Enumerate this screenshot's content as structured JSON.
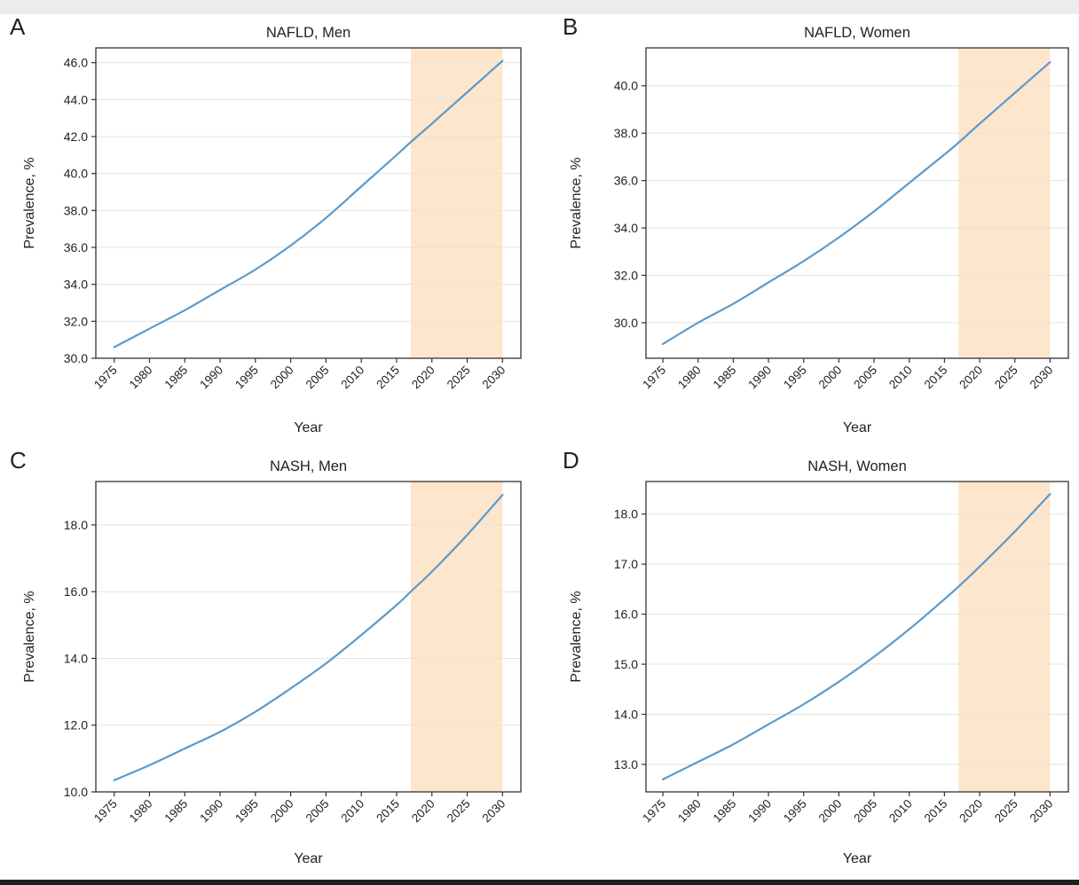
{
  "chart_data": [
    {
      "type": "line",
      "panel_letter": "A",
      "title": "NAFLD, Men",
      "xlabel": "Year",
      "ylabel": "Prevalence, %",
      "x_ticks": [
        "1975",
        "1980",
        "1985",
        "1990",
        "1995",
        "2000",
        "2005",
        "2010",
        "2015",
        "2020",
        "2025",
        "2030"
      ],
      "y_ticks": [
        "30.0",
        "32.0",
        "34.0",
        "36.0",
        "38.0",
        "40.0",
        "42.0",
        "44.0",
        "46.0"
      ],
      "xlim": [
        1972.4,
        2032.6
      ],
      "ylim": [
        30.0,
        46.8
      ],
      "grid": true,
      "projection_shading": {
        "from": 2017,
        "to": 2030,
        "color": "#fde6cc"
      },
      "line_color": "#5b9bcc",
      "series": [
        {
          "name": "NAFLD, Men",
          "x": [
            1975,
            1980,
            1985,
            1990,
            1995,
            2000,
            2005,
            2010,
            2015,
            2017,
            2020,
            2025,
            2030
          ],
          "values": [
            30.6,
            31.6,
            32.6,
            33.7,
            34.8,
            36.1,
            37.6,
            39.3,
            41.0,
            41.7,
            42.7,
            44.4,
            46.1
          ]
        }
      ]
    },
    {
      "type": "line",
      "panel_letter": "B",
      "title": "NAFLD, Women",
      "xlabel": "Year",
      "ylabel": "Prevalence, %",
      "x_ticks": [
        "1975",
        "1980",
        "1985",
        "1990",
        "1995",
        "2000",
        "2005",
        "2010",
        "2015",
        "2020",
        "2025",
        "2030"
      ],
      "y_ticks": [
        "30.0",
        "32.0",
        "34.0",
        "36.0",
        "38.0",
        "40.0"
      ],
      "xlim": [
        1972.6,
        2032.6
      ],
      "ylim": [
        28.5,
        41.6
      ],
      "grid": true,
      "projection_shading": {
        "from": 2017,
        "to": 2030,
        "color": "#fde6cc"
      },
      "line_color": "#5b9bcc",
      "series": [
        {
          "name": "NAFLD, Women",
          "x": [
            1975,
            1980,
            1985,
            1990,
            1995,
            2000,
            2005,
            2010,
            2015,
            2017,
            2020,
            2025,
            2030
          ],
          "values": [
            29.1,
            30.0,
            30.8,
            31.7,
            32.6,
            33.6,
            34.7,
            35.9,
            37.1,
            37.6,
            38.4,
            39.7,
            41.0
          ]
        }
      ]
    },
    {
      "type": "line",
      "panel_letter": "C",
      "title": "NASH, Men",
      "xlabel": "Year",
      "ylabel": "Prevalence, %",
      "x_ticks": [
        "1975",
        "1980",
        "1985",
        "1990",
        "1995",
        "2000",
        "2005",
        "2010",
        "2015",
        "2020",
        "2025",
        "2030"
      ],
      "y_ticks": [
        "10.0",
        "12.0",
        "14.0",
        "16.0",
        "18.0"
      ],
      "xlim": [
        1972.4,
        2032.6
      ],
      "ylim": [
        10.0,
        19.3
      ],
      "grid": true,
      "projection_shading": {
        "from": 2017,
        "to": 2030,
        "color": "#fde6cc"
      },
      "line_color": "#5b9bcc",
      "series": [
        {
          "name": "NASH, Men",
          "x": [
            1975,
            1980,
            1985,
            1990,
            1995,
            2000,
            2005,
            2010,
            2015,
            2017,
            2020,
            2025,
            2030
          ],
          "values": [
            10.35,
            10.8,
            11.3,
            11.8,
            12.4,
            13.1,
            13.85,
            14.7,
            15.6,
            16.0,
            16.6,
            17.7,
            18.9
          ]
        }
      ]
    },
    {
      "type": "line",
      "panel_letter": "D",
      "title": "NASH, Women",
      "xlabel": "Year",
      "ylabel": "Prevalence, %",
      "x_ticks": [
        "1975",
        "1980",
        "1985",
        "1990",
        "1995",
        "2000",
        "2005",
        "2010",
        "2015",
        "2020",
        "2025",
        "2030"
      ],
      "y_ticks": [
        "13.0",
        "14.0",
        "15.0",
        "16.0",
        "17.0",
        "18.0"
      ],
      "xlim": [
        1972.6,
        2032.6
      ],
      "ylim": [
        12.45,
        18.65
      ],
      "grid": true,
      "projection_shading": {
        "from": 2017,
        "to": 2030,
        "color": "#fde6cc"
      },
      "line_color": "#5b9bcc",
      "series": [
        {
          "name": "NASH, Women",
          "x": [
            1975,
            1980,
            1985,
            1990,
            1995,
            2000,
            2005,
            2010,
            2015,
            2017,
            2020,
            2025,
            2030
          ],
          "values": [
            12.7,
            13.05,
            13.4,
            13.8,
            14.2,
            14.65,
            15.15,
            15.7,
            16.3,
            16.55,
            16.95,
            17.65,
            18.4
          ]
        }
      ]
    }
  ]
}
